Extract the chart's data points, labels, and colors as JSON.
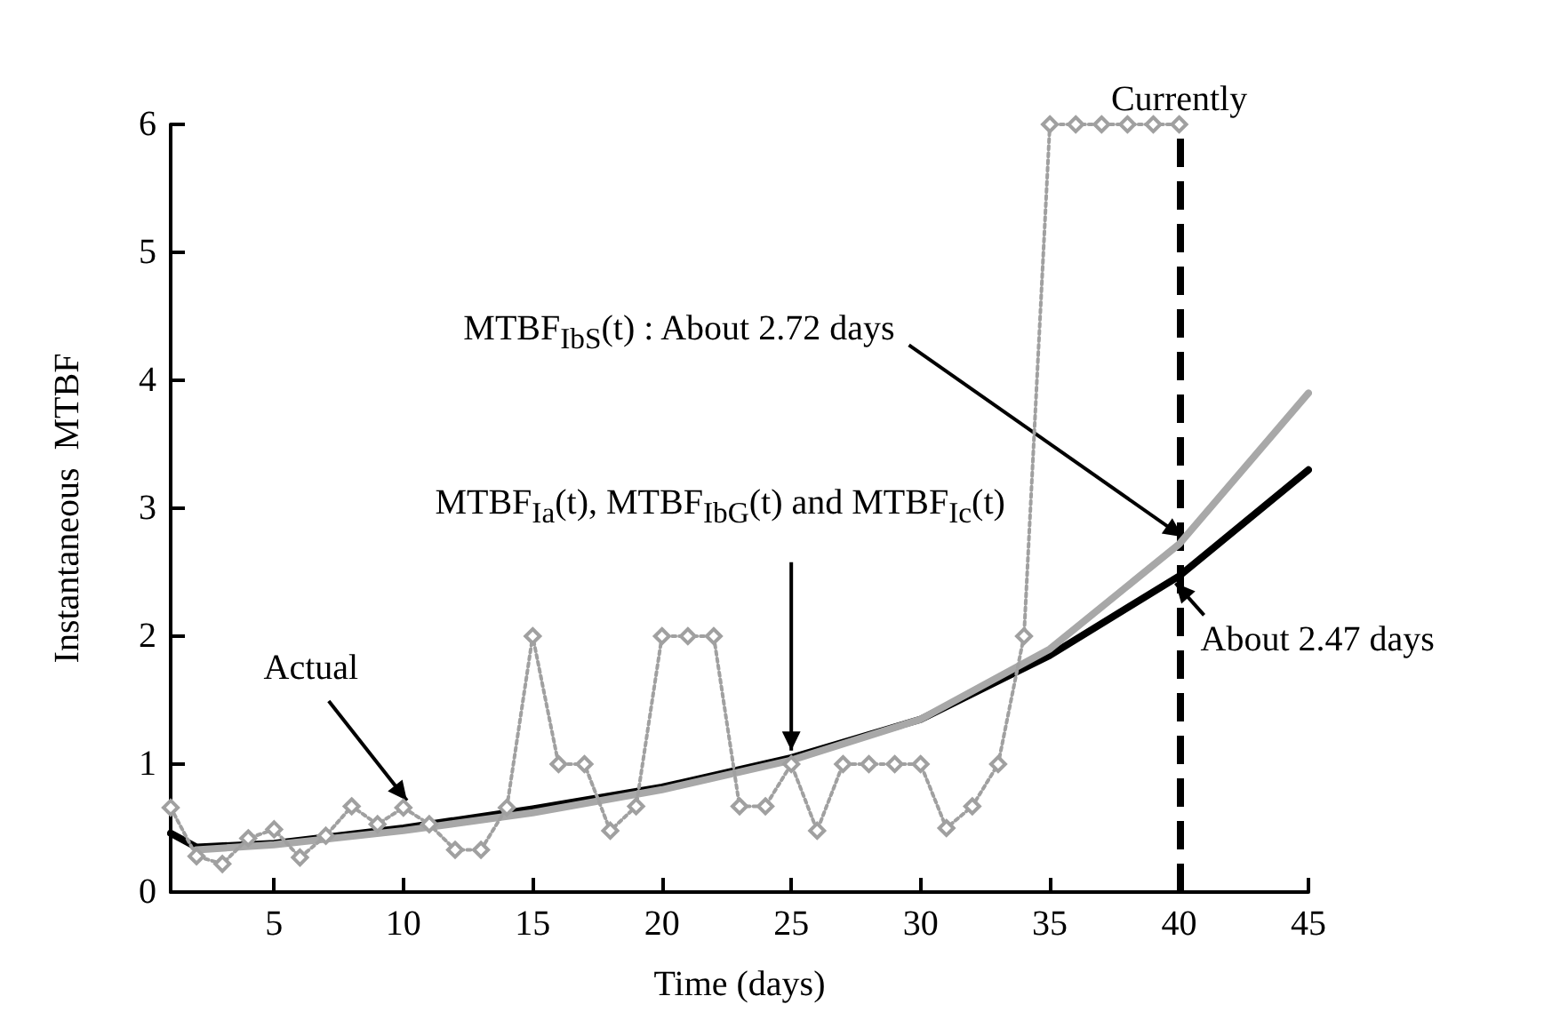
{
  "chart_data": {
    "type": "line",
    "xlabel": "Time (days)",
    "ylabel": "Instantaneous  MTBF",
    "xlim": [
      1,
      45
    ],
    "xticks": [
      5,
      10,
      15,
      20,
      25,
      30,
      35,
      40,
      45
    ],
    "ylim": [
      0,
      6
    ],
    "yticks": [
      0,
      1,
      2,
      3,
      4,
      5,
      6
    ],
    "grid": false,
    "series": [
      {
        "color": "#a0a0a0",
        "marker": "diamond",
        "line_style": "dotted",
        "x": [
          1,
          2,
          3,
          4,
          5,
          6,
          7,
          8,
          9,
          10,
          11,
          12,
          13,
          14,
          15,
          16,
          17,
          18,
          19,
          20,
          21,
          22,
          23,
          24,
          25,
          26,
          27,
          28,
          29,
          30,
          31,
          32,
          33,
          34,
          35,
          36,
          37,
          38,
          39,
          40
        ],
        "values": [
          0.66,
          0.28,
          0.22,
          0.42,
          0.49,
          0.27,
          0.44,
          0.67,
          0.53,
          0.66,
          0.53,
          0.33,
          0.33,
          0.66,
          2.0,
          1.0,
          1.0,
          0.48,
          0.67,
          2.0,
          2.0,
          2.0,
          0.67,
          0.67,
          1.0,
          0.48,
          1.0,
          1.0,
          1.0,
          1.0,
          0.5,
          0.67,
          1.0,
          2.0,
          6.0,
          6.0,
          6.0,
          6.0,
          6.0,
          6.0
        ]
      },
      {
        "color": "#a8a8a8",
        "marker": "none",
        "line_style": "solid",
        "x": [
          2,
          5,
          10,
          15,
          20,
          25,
          30,
          35,
          40,
          45
        ],
        "values": [
          0.33,
          0.37,
          0.48,
          0.62,
          0.8,
          1.03,
          1.35,
          1.9,
          2.72,
          3.9
        ]
      },
      {
        "color": "#000000",
        "marker": "none",
        "line_style": "solid",
        "x": [
          1,
          2,
          5,
          10,
          15,
          20,
          25,
          30,
          35,
          40,
          45
        ],
        "values": [
          0.46,
          0.35,
          0.38,
          0.5,
          0.65,
          0.82,
          1.05,
          1.35,
          1.85,
          2.47,
          3.3
        ]
      }
    ],
    "ref_lines": [
      {
        "axis": "x",
        "value": 40,
        "label": "Currently",
        "color": "#000000",
        "line_style": "dashed"
      }
    ],
    "annotations": [
      {
        "text": "Actual",
        "x": 10,
        "y": 0.66
      },
      {
        "text": "MTBF$_{Ia}$(t), MTBF$_{IbG}$(t) and MTBF$_{Ic}$(t)",
        "x": 25,
        "y": 1.05
      },
      {
        "text": "MTBF$_{IbS}$(t) : About 2.72 days",
        "x": 40,
        "y": 2.72
      },
      {
        "text": "About 2.47 days",
        "x": 40,
        "y": 2.47
      }
    ]
  }
}
